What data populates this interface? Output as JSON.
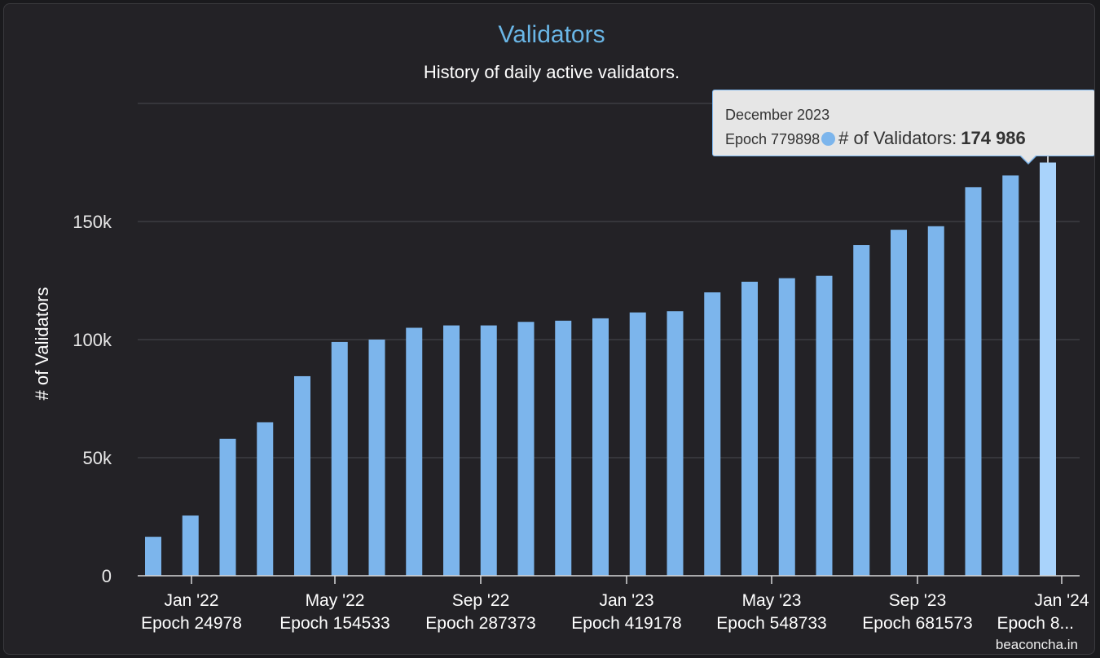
{
  "chart_data": {
    "type": "bar",
    "title": "Validators",
    "subtitle": "History of daily active validators.",
    "ylabel": "# of Validators",
    "ylim": [
      0,
      200000
    ],
    "y_ticks": [
      "0",
      "50k",
      "100k",
      "150k"
    ],
    "y_tick_values": [
      0,
      50000,
      100000,
      150000
    ],
    "x_ticks": [
      {
        "month": "Jan '22",
        "epoch": "Epoch 24978"
      },
      {
        "month": "May '22",
        "epoch": "Epoch 154533"
      },
      {
        "month": "Sep '22",
        "epoch": "Epoch 287373"
      },
      {
        "month": "Jan '23",
        "epoch": "Epoch 419178"
      },
      {
        "month": "May '23",
        "epoch": "Epoch 548733"
      },
      {
        "month": "Sep '23",
        "epoch": "Epoch 681573"
      },
      {
        "month": "Jan '24",
        "epoch": "Epoch 8..."
      }
    ],
    "series": [
      {
        "name": "# of Validators",
        "color": "#7cb5ec",
        "values": [
          16500,
          25500,
          58000,
          65000,
          84500,
          99000,
          100000,
          105000,
          106000,
          106000,
          107500,
          108000,
          109000,
          111500,
          112000,
          120000,
          124500,
          126000,
          127000,
          140000,
          146500,
          148000,
          164500,
          169500,
          174986
        ]
      }
    ],
    "grid": true,
    "legend": "none"
  },
  "tooltip": {
    "date": "December 2023",
    "epoch": "Epoch 779898",
    "series_label": "# of Validators:",
    "value": "174 986",
    "bar_index": 24
  },
  "credit": "beaconcha.in"
}
